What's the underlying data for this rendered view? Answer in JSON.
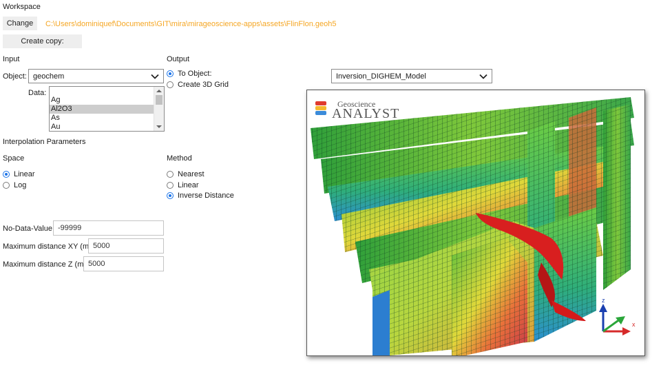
{
  "workspace": {
    "heading": "Workspace",
    "change_button": "Change",
    "path": "C:\\Users\\dominiquef\\Documents\\GIT\\mira\\mirageoscience-apps\\assets\\FlinFlon.geoh5",
    "create_copy_button": "Create copy:"
  },
  "input": {
    "heading": "Input",
    "object_label": "Object:",
    "object_value": "geochem",
    "data_label": "Data:",
    "data_options": [
      "",
      "Ag",
      "Al2O3",
      "As",
      "Au"
    ],
    "data_selected": "Al2O3"
  },
  "output": {
    "heading": "Output",
    "options": [
      "To Object:",
      "Create 3D Grid"
    ],
    "selected": "To Object:",
    "target_value": "Inversion_DIGHEM_Model"
  },
  "interpolation": {
    "heading": "Interpolation Parameters",
    "space_heading": "Space",
    "space_options": [
      "Linear",
      "Log"
    ],
    "space_selected": "Linear",
    "method_heading": "Method",
    "method_options": [
      "Nearest",
      "Linear",
      "Inverse Distance"
    ],
    "method_selected": "Inverse Distance"
  },
  "parameters": {
    "no_data_label": "No-Data-Value",
    "no_data_value": "-99999",
    "max_xy_label": "Maximum distance XY (m)",
    "max_xy_value": "5000",
    "max_z_label": "Maximum distance Z (m)",
    "max_z_value": "5000"
  },
  "viewer": {
    "logo_top": "Geoscience",
    "logo_bottom": "ANALYST",
    "axis_z": "z",
    "axis_x": "x",
    "axis_y": "y"
  },
  "colors": {
    "accent": "#1a73e8",
    "path": "#f5a623"
  }
}
